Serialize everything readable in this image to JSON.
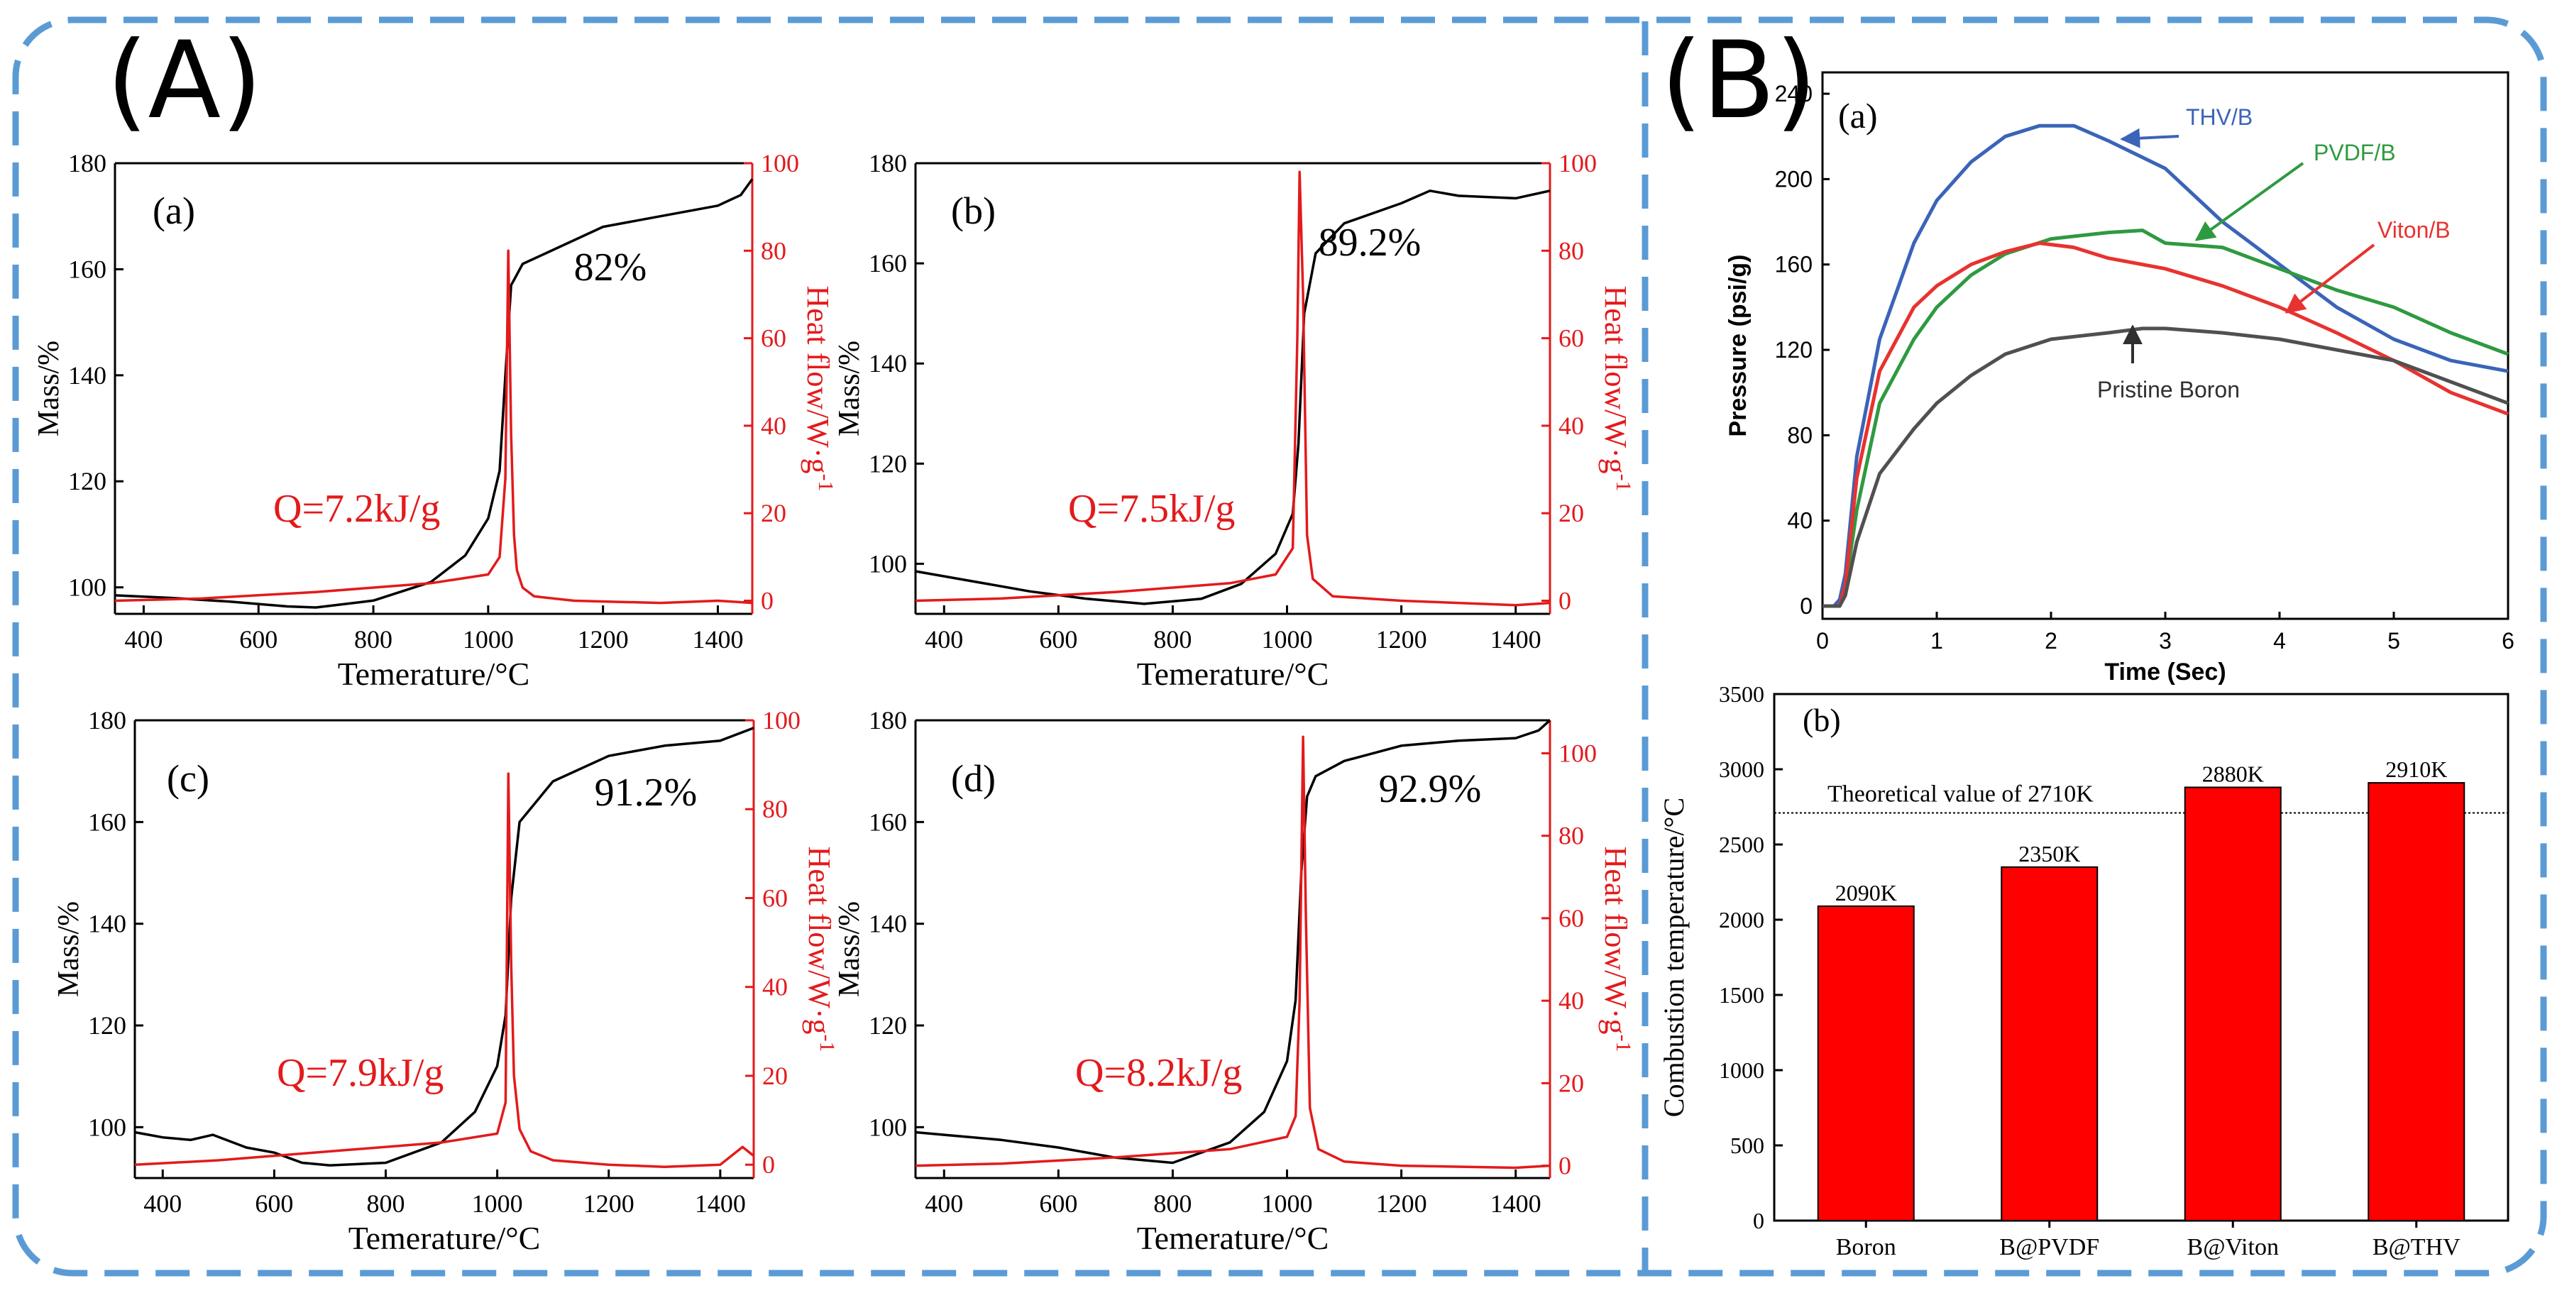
{
  "colors": {
    "frame": "#5b9bd5",
    "mass": "#000000",
    "heat": "#e31a1c",
    "thv": "#3a64b8",
    "pvdf": "#2e9a40",
    "viton": "#e8322f",
    "pristine": "#505050",
    "bar": "#ff0000"
  },
  "panel_a": {
    "label": "(A)"
  },
  "panel_b": {
    "label": "(B)"
  },
  "chart_data": [
    {
      "type": "line",
      "id": "dsc-a",
      "sublabel": "(a)",
      "annotation": "Q=7.2kJ/g",
      "percent": "82%",
      "xlabel": "Temerature/°C",
      "ylabel": "Mass/%",
      "y2label": "Heat flow/W·g",
      "y2label_sup": "-1",
      "xlim": [
        350,
        1460
      ],
      "ylim": [
        95,
        180
      ],
      "y2lim": [
        -3,
        100
      ],
      "xticks": [
        400,
        600,
        800,
        1000,
        1200,
        1400
      ],
      "yticks": [
        100,
        120,
        140,
        160,
        180
      ],
      "y2ticks": [
        0,
        20,
        40,
        60,
        80,
        100
      ],
      "series": [
        {
          "name": "Mass",
          "color": "#000000",
          "x": [
            350,
            450,
            550,
            650,
            700,
            800,
            900,
            960,
            1000,
            1020,
            1030,
            1040,
            1045,
            1060,
            1100,
            1200,
            1300,
            1400,
            1440,
            1460
          ],
          "y": [
            98.5,
            98,
            97.3,
            96.4,
            96.2,
            97.5,
            101,
            106,
            113,
            122,
            140,
            157,
            158,
            161,
            163,
            168,
            170,
            172,
            174,
            177
          ]
        },
        {
          "name": "Heat flow",
          "color": "#e31a1c",
          "axis": "y2",
          "x": [
            350,
            500,
            700,
            900,
            1000,
            1020,
            1030,
            1035,
            1040,
            1045,
            1050,
            1060,
            1080,
            1150,
            1300,
            1400,
            1460
          ],
          "y": [
            0,
            0.5,
            2,
            4,
            6,
            10,
            28,
            80,
            38,
            15,
            7,
            3,
            1,
            0,
            -0.5,
            0,
            -0.5
          ]
        }
      ]
    },
    {
      "type": "line",
      "id": "dsc-b",
      "sublabel": "(b)",
      "annotation": "Q=7.5kJ/g",
      "percent": "89.2%",
      "xlabel": "Temerature/°C",
      "ylabel": "Mass/%",
      "y2label": "Heat flow/W·g",
      "y2label_sup": "-1",
      "xlim": [
        350,
        1460
      ],
      "ylim": [
        90,
        180
      ],
      "y2lim": [
        -3,
        100
      ],
      "xticks": [
        400,
        600,
        800,
        1000,
        1200,
        1400
      ],
      "yticks": [
        100,
        120,
        140,
        160,
        180
      ],
      "y2ticks": [
        0,
        20,
        40,
        60,
        80,
        100
      ],
      "series": [
        {
          "name": "Mass",
          "color": "#000000",
          "x": [
            350,
            450,
            550,
            650,
            750,
            850,
            920,
            980,
            1010,
            1020,
            1030,
            1050,
            1100,
            1200,
            1250,
            1300,
            1400,
            1460
          ],
          "y": [
            98.5,
            96.5,
            94.5,
            93,
            92,
            93,
            96,
            102,
            110,
            124,
            150,
            162,
            168,
            172,
            174.5,
            173.5,
            173,
            174.5
          ]
        },
        {
          "name": "Heat flow",
          "color": "#e31a1c",
          "axis": "y2",
          "x": [
            350,
            500,
            700,
            900,
            980,
            1010,
            1018,
            1022,
            1028,
            1035,
            1045,
            1080,
            1200,
            1400,
            1460
          ],
          "y": [
            0,
            0.5,
            2,
            4,
            6,
            12,
            60,
            98,
            70,
            15,
            5,
            1,
            0,
            -1,
            -0.5
          ]
        }
      ]
    },
    {
      "type": "line",
      "id": "dsc-c",
      "sublabel": "(c)",
      "annotation": "Q=7.9kJ/g",
      "percent": "91.2%",
      "xlabel": "Temerature/°C",
      "ylabel": "Mass/%",
      "y2label": "Heat flow/W·g",
      "y2label_sup": "-1",
      "xlim": [
        350,
        1460
      ],
      "ylim": [
        90,
        180
      ],
      "y2lim": [
        -3,
        100
      ],
      "xticks": [
        400,
        600,
        800,
        1000,
        1200,
        1400
      ],
      "yticks": [
        100,
        120,
        140,
        160,
        180
      ],
      "y2ticks": [
        0,
        20,
        40,
        60,
        80,
        100
      ],
      "series": [
        {
          "name": "Mass",
          "color": "#000000",
          "x": [
            350,
            400,
            450,
            490,
            550,
            600,
            650,
            700,
            800,
            900,
            960,
            1000,
            1015,
            1025,
            1040,
            1100,
            1200,
            1300,
            1400,
            1460
          ],
          "y": [
            99,
            98,
            97.5,
            98.5,
            96,
            95,
            93,
            92.5,
            93,
            97,
            103,
            112,
            122,
            145,
            160,
            168,
            173,
            175,
            176,
            178.5
          ]
        },
        {
          "name": "Heat flow",
          "color": "#e31a1c",
          "axis": "y2",
          "x": [
            350,
            500,
            700,
            900,
            1000,
            1015,
            1020,
            1025,
            1030,
            1040,
            1060,
            1100,
            1200,
            1300,
            1400,
            1440,
            1460
          ],
          "y": [
            0,
            1,
            3,
            5,
            7,
            14,
            88,
            45,
            20,
            8,
            3,
            1,
            0,
            -0.5,
            0,
            4,
            2
          ]
        }
      ]
    },
    {
      "type": "line",
      "id": "dsc-d",
      "sublabel": "(d)",
      "annotation": "Q=8.2kJ/g",
      "percent": "92.9%",
      "xlabel": "Temerature/°C",
      "ylabel": "Mass/%",
      "y2label": "Heat flow/W·g",
      "y2label_sup": "-1",
      "xlim": [
        350,
        1460
      ],
      "ylim": [
        90,
        180
      ],
      "y2lim": [
        -3,
        108
      ],
      "xticks": [
        400,
        600,
        800,
        1000,
        1200,
        1400
      ],
      "yticks": [
        100,
        120,
        140,
        160,
        180
      ],
      "y2ticks": [
        0,
        20,
        40,
        60,
        80,
        100
      ],
      "series": [
        {
          "name": "Mass",
          "color": "#000000",
          "x": [
            350,
            400,
            500,
            600,
            700,
            800,
            900,
            960,
            1000,
            1015,
            1025,
            1035,
            1050,
            1100,
            1200,
            1300,
            1400,
            1440,
            1460
          ],
          "y": [
            99,
            98.5,
            97.5,
            96,
            94,
            93,
            97,
            103,
            113,
            125,
            150,
            165,
            169,
            172,
            175,
            176,
            176.5,
            178,
            180
          ]
        },
        {
          "name": "Heat flow",
          "color": "#e31a1c",
          "axis": "y2",
          "x": [
            350,
            500,
            700,
            900,
            1000,
            1015,
            1022,
            1028,
            1033,
            1040,
            1055,
            1100,
            1200,
            1400,
            1460
          ],
          "y": [
            0,
            0.5,
            2,
            4,
            7,
            12,
            40,
            104,
            60,
            14,
            4,
            1,
            0,
            -0.5,
            0
          ]
        }
      ]
    },
    {
      "type": "line",
      "id": "pressure",
      "sublabel": "(a)",
      "xlabel": "Time (Sec)",
      "ylabel": "Pressure (psi/g)",
      "xlim": [
        0,
        6
      ],
      "ylim": [
        -6,
        250
      ],
      "xticks": [
        0,
        1,
        2,
        3,
        4,
        5,
        6
      ],
      "yticks": [
        0,
        40,
        80,
        120,
        160,
        200,
        240
      ],
      "series": [
        {
          "name": "THV/B",
          "color": "#3a64b8",
          "x": [
            0,
            0.1,
            0.15,
            0.2,
            0.3,
            0.5,
            0.8,
            1,
            1.3,
            1.6,
            1.9,
            2.2,
            2.5,
            3,
            3.5,
            4,
            4.5,
            5,
            5.5,
            6
          ],
          "y": [
            0,
            0,
            3,
            15,
            70,
            125,
            170,
            190,
            208,
            220,
            225,
            225,
            218,
            205,
            180,
            160,
            140,
            125,
            115,
            110
          ]
        },
        {
          "name": "PVDF/B",
          "color": "#2e9a40",
          "x": [
            0,
            0.15,
            0.2,
            0.3,
            0.5,
            0.8,
            1,
            1.3,
            1.6,
            2,
            2.5,
            2.8,
            3,
            3.5,
            4,
            4.5,
            5,
            5.5,
            6
          ],
          "y": [
            0,
            0,
            8,
            45,
            95,
            125,
            140,
            155,
            165,
            172,
            175,
            176,
            170,
            168,
            158,
            148,
            140,
            128,
            118
          ]
        },
        {
          "name": "Viton/B",
          "color": "#e8322f",
          "x": [
            0,
            0.15,
            0.2,
            0.3,
            0.5,
            0.8,
            1,
            1.3,
            1.6,
            1.9,
            2.2,
            2.5,
            3,
            3.5,
            4,
            4.5,
            5,
            5.5,
            6
          ],
          "y": [
            0,
            0,
            10,
            60,
            110,
            140,
            150,
            160,
            166,
            170,
            168,
            163,
            158,
            150,
            140,
            128,
            115,
            100,
            90
          ]
        },
        {
          "name": "Pristine Boron",
          "color": "#505050",
          "x": [
            0,
            0.15,
            0.2,
            0.3,
            0.5,
            0.8,
            1,
            1.3,
            1.6,
            2,
            2.5,
            2.8,
            3,
            3.5,
            4,
            4.5,
            5,
            5.5,
            6
          ],
          "y": [
            0,
            0,
            5,
            30,
            62,
            83,
            95,
            108,
            118,
            125,
            128,
            130,
            130,
            128,
            125,
            120,
            115,
            105,
            95
          ]
        }
      ],
      "annotations": [
        "THV/B",
        "PVDF/B",
        "Viton/B",
        "Pristine Boron"
      ]
    },
    {
      "type": "bar",
      "id": "combustion",
      "sublabel": "(b)",
      "categories": [
        "Boron",
        "B@PVDF",
        "B@Viton",
        "B@THV"
      ],
      "values": [
        2090,
        2350,
        2880,
        2910
      ],
      "labels": [
        "2090K",
        "2350K",
        "2880K",
        "2910K"
      ],
      "ylabel": "Combustion temperature/°C",
      "ylim": [
        0,
        3500
      ],
      "yticks": [
        0,
        500,
        1000,
        1500,
        2000,
        2500,
        3000,
        3500
      ],
      "reference_line": {
        "value": 2710,
        "label": "Theoretical value of 2710K"
      }
    }
  ]
}
